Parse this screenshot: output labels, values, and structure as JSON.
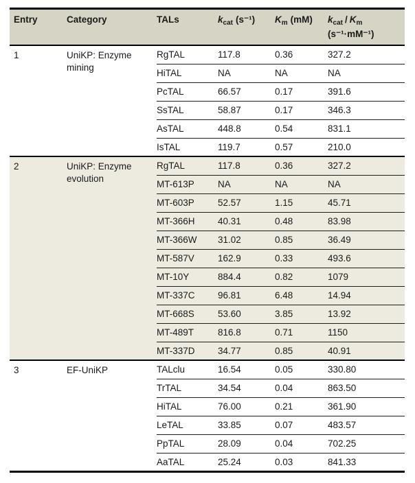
{
  "table": {
    "columns": [
      {
        "label": "Entry"
      },
      {
        "label": "Category"
      },
      {
        "label": "TALs"
      },
      {
        "sym": "k",
        "sub": "cat",
        "unit": "(s⁻¹)"
      },
      {
        "sym": "K",
        "sub": "m",
        "unit": "(mM)"
      },
      {
        "sym": "k",
        "sub": "cat",
        "sep": "/",
        "sym2": "K",
        "sub2": "m",
        "unit2": "(s⁻¹·mM⁻¹)"
      }
    ],
    "groups": [
      {
        "entry": "1",
        "category": "UniKP: Enzyme mining",
        "shaded": false,
        "rows": [
          {
            "tal": "RgTAL",
            "kcat": "117.8",
            "km": "0.36",
            "ratio": "327.2"
          },
          {
            "tal": "HiTAL",
            "kcat": "NA",
            "km": "NA",
            "ratio": "NA"
          },
          {
            "tal": "PcTAL",
            "kcat": "66.57",
            "km": "0.17",
            "ratio": "391.6"
          },
          {
            "tal": "SsTAL",
            "kcat": "58.87",
            "km": "0.17",
            "ratio": "346.3"
          },
          {
            "tal": "AsTAL",
            "kcat": "448.8",
            "km": "0.54",
            "ratio": "831.1"
          },
          {
            "tal": "IsTAL",
            "kcat": "119.7",
            "km": "0.57",
            "ratio": "210.0"
          }
        ]
      },
      {
        "entry": "2",
        "category": "UniKP: Enzyme evolution",
        "shaded": true,
        "rows": [
          {
            "tal": "RgTAL",
            "kcat": "117.8",
            "km": "0.36",
            "ratio": "327.2"
          },
          {
            "tal": "MT-613P",
            "kcat": "NA",
            "km": "NA",
            "ratio": "NA"
          },
          {
            "tal": "MT-603P",
            "kcat": "52.57",
            "km": "1.15",
            "ratio": "45.71"
          },
          {
            "tal": "MT-366H",
            "kcat": "40.31",
            "km": "0.48",
            "ratio": "83.98"
          },
          {
            "tal": "MT-366W",
            "kcat": "31.02",
            "km": "0.85",
            "ratio": "36.49"
          },
          {
            "tal": "MT-587V",
            "kcat": "162.9",
            "km": "0.33",
            "ratio": "493.6"
          },
          {
            "tal": "MT-10Y",
            "kcat": "884.4",
            "km": "0.82",
            "ratio": "1079"
          },
          {
            "tal": "MT-337C",
            "kcat": "96.81",
            "km": "6.48",
            "ratio": "14.94"
          },
          {
            "tal": "MT-668S",
            "kcat": "53.60",
            "km": "3.85",
            "ratio": "13.92"
          },
          {
            "tal": "MT-489T",
            "kcat": "816.8",
            "km": "0.71",
            "ratio": "1150"
          },
          {
            "tal": "MT-337D",
            "kcat": "34.77",
            "km": "0.85",
            "ratio": "40.91"
          }
        ]
      },
      {
        "entry": "3",
        "category": "EF-UniKP",
        "shaded": false,
        "rows": [
          {
            "tal": "TALclu",
            "kcat": "16.54",
            "km": "0.05",
            "ratio": "330.80"
          },
          {
            "tal": "TrTAL",
            "kcat": "34.54",
            "km": "0.04",
            "ratio": "863.50"
          },
          {
            "tal": "HiTAL",
            "kcat": "76.00",
            "km": "0.21",
            "ratio": "361.90"
          },
          {
            "tal": "LeTAL",
            "kcat": "33.85",
            "km": "0.07",
            "ratio": "483.57"
          },
          {
            "tal": "PpTAL",
            "kcat": "28.09",
            "km": "0.04",
            "ratio": "702.25"
          },
          {
            "tal": "AaTAL",
            "kcat": "25.24",
            "km": "0.03",
            "ratio": "841.33"
          }
        ]
      }
    ]
  },
  "colors": {
    "header_bg": "#d6d4c4",
    "shaded_group_bg": "#edebdf",
    "rule_color": "#000000",
    "text": "#1a1a1a"
  }
}
